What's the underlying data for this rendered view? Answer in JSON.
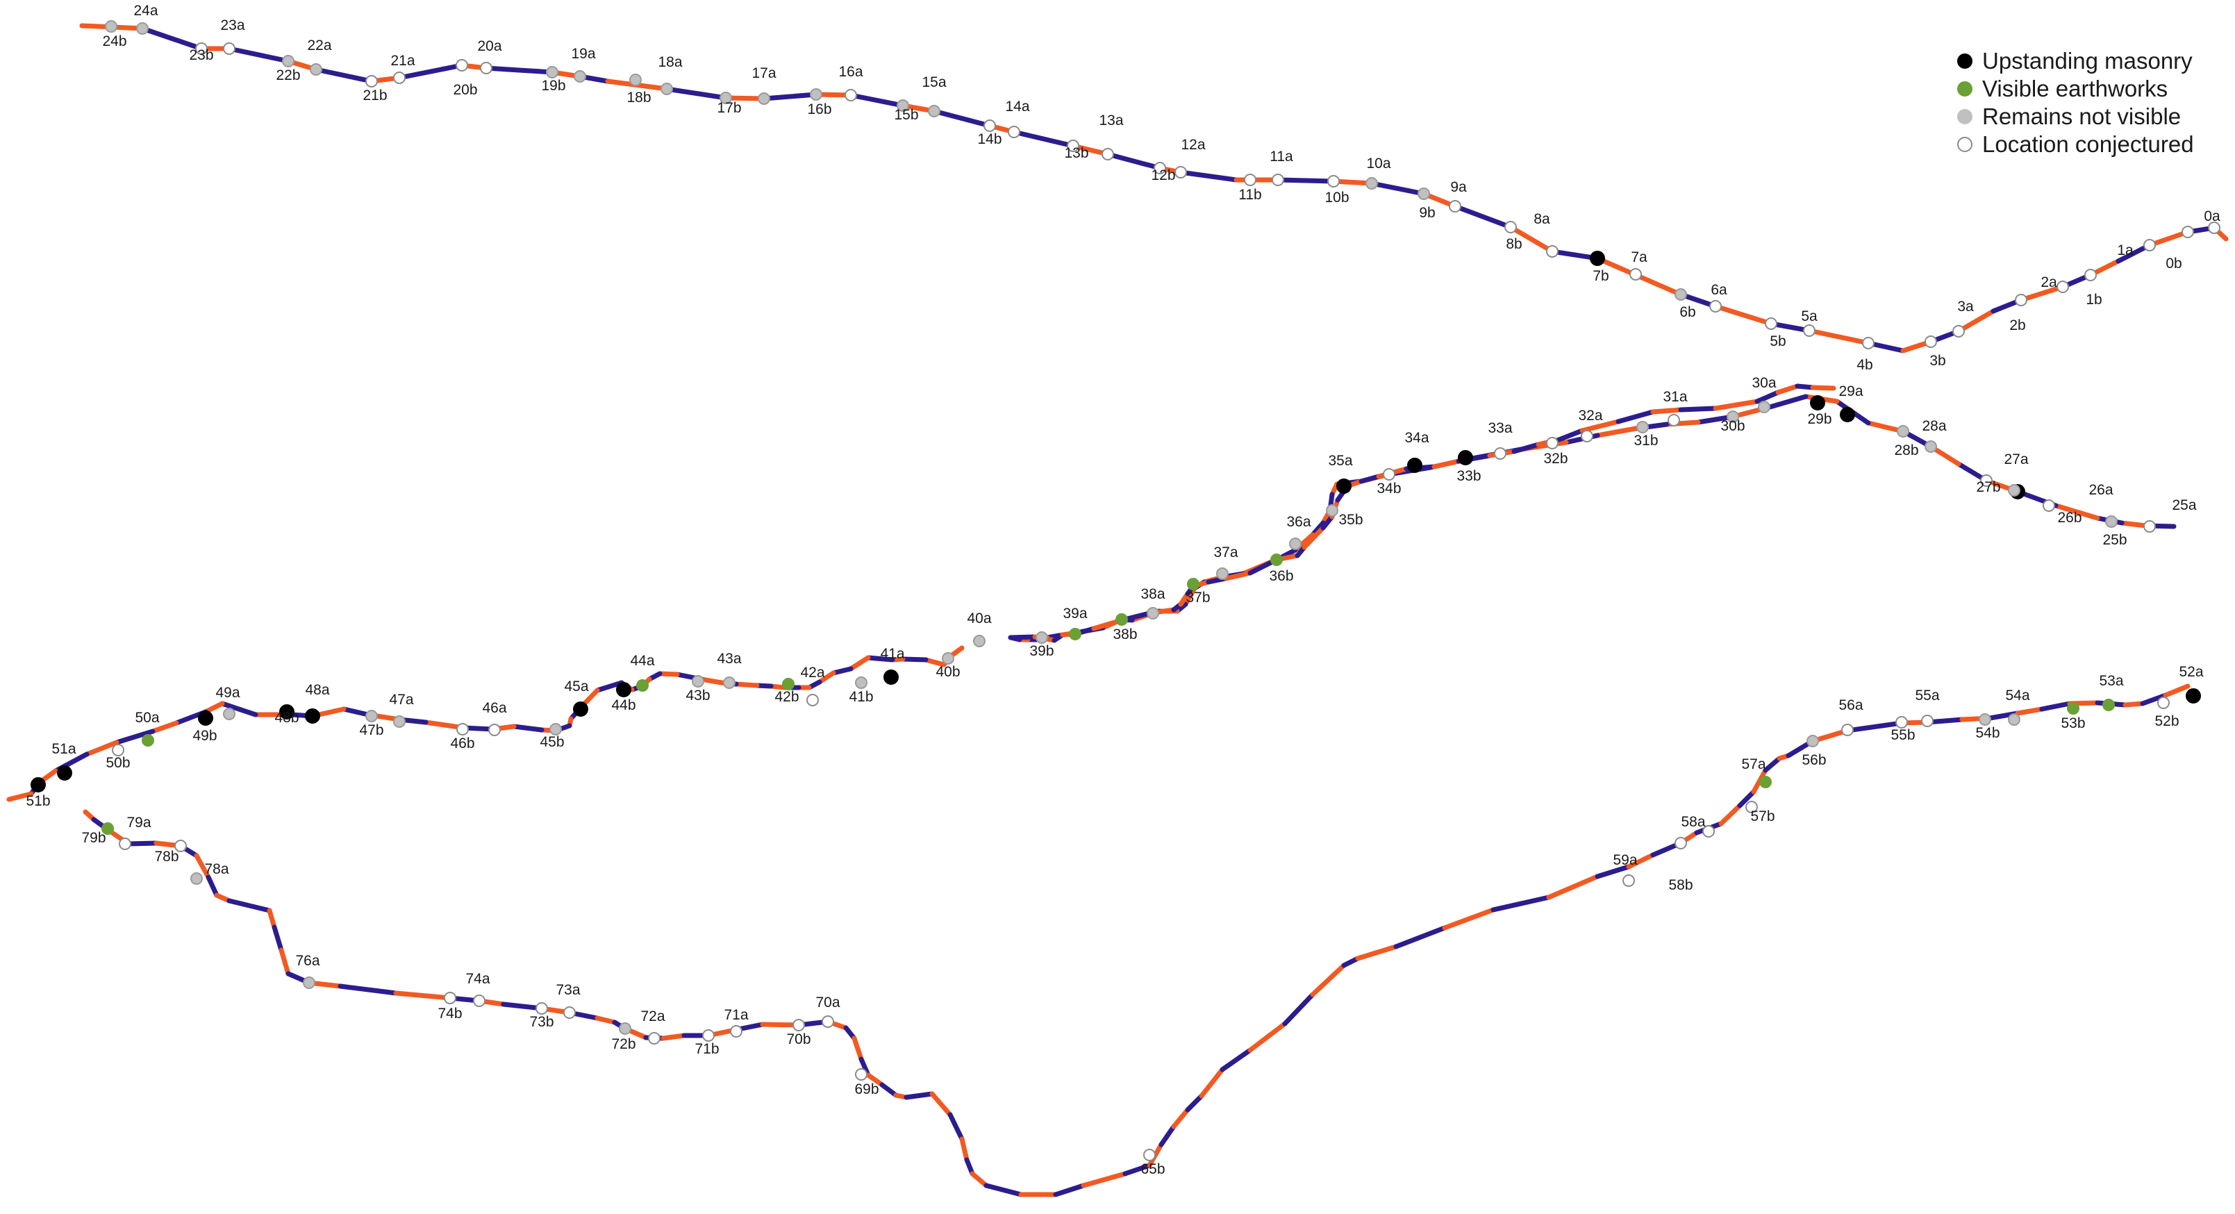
{
  "colors": {
    "segment_a": "#f15a22",
    "segment_b": "#2b1d8e",
    "upstanding_masonry": "#000000",
    "visible_earthworks": "#6ba034",
    "remains_not_visible": "#c0c0c0",
    "location_conjectured": "#ffffff"
  },
  "legend": [
    {
      "key": "upstanding_masonry",
      "label": "Upstanding masonry"
    },
    {
      "key": "visible_earthworks",
      "label": "Visible earthworks"
    },
    {
      "key": "remains_not_visible",
      "label": "Remains not visible"
    },
    {
      "key": "location_conjectured",
      "label": "Location conjectured"
    }
  ],
  "sites": [
    {
      "label": "0a",
      "status": "location_conjectured"
    },
    {
      "label": "0b",
      "status": "location_conjectured"
    },
    {
      "label": "1a",
      "status": "location_conjectured"
    },
    {
      "label": "1b",
      "status": "location_conjectured"
    },
    {
      "label": "2a",
      "status": "location_conjectured"
    },
    {
      "label": "2b",
      "status": "location_conjectured"
    },
    {
      "label": "3a",
      "status": "location_conjectured"
    },
    {
      "label": "3b",
      "status": "location_conjectured"
    },
    {
      "label": "4b",
      "status": "location_conjectured"
    },
    {
      "label": "5a",
      "status": "location_conjectured"
    },
    {
      "label": "5b",
      "status": "location_conjectured"
    },
    {
      "label": "6a",
      "status": "location_conjectured"
    },
    {
      "label": "6b",
      "status": "remains_not_visible"
    },
    {
      "label": "7a",
      "status": "location_conjectured"
    },
    {
      "label": "7b",
      "status": "upstanding_masonry"
    },
    {
      "label": "8a",
      "status": "location_conjectured"
    },
    {
      "label": "8b",
      "status": "location_conjectured"
    },
    {
      "label": "9a",
      "status": "location_conjectured"
    },
    {
      "label": "9b",
      "status": "remains_not_visible"
    },
    {
      "label": "10a",
      "status": "remains_not_visible"
    },
    {
      "label": "10b",
      "status": "location_conjectured"
    },
    {
      "label": "11a",
      "status": "location_conjectured"
    },
    {
      "label": "11b",
      "status": "location_conjectured"
    },
    {
      "label": "12a",
      "status": "location_conjectured"
    },
    {
      "label": "12b",
      "status": "location_conjectured"
    },
    {
      "label": "13a",
      "status": "location_conjectured"
    },
    {
      "label": "13b",
      "status": "location_conjectured"
    },
    {
      "label": "14a",
      "status": "location_conjectured"
    },
    {
      "label": "14b",
      "status": "location_conjectured"
    },
    {
      "label": "15a",
      "status": "remains_not_visible"
    },
    {
      "label": "15b",
      "status": "remains_not_visible"
    },
    {
      "label": "16a",
      "status": "location_conjectured"
    },
    {
      "label": "16b",
      "status": "remains_not_visible"
    },
    {
      "label": "17a",
      "status": "remains_not_visible"
    },
    {
      "label": "17b",
      "status": "remains_not_visible"
    },
    {
      "label": "18a",
      "status": "remains_not_visible"
    },
    {
      "label": "18b",
      "status": "remains_not_visible"
    },
    {
      "label": "19a",
      "status": "remains_not_visible"
    },
    {
      "label": "19b",
      "status": "remains_not_visible"
    },
    {
      "label": "20a",
      "status": "location_conjectured"
    },
    {
      "label": "20b",
      "status": "location_conjectured"
    },
    {
      "label": "21a",
      "status": "location_conjectured"
    },
    {
      "label": "21b",
      "status": "location_conjectured"
    },
    {
      "label": "22a",
      "status": "remains_not_visible"
    },
    {
      "label": "22b",
      "status": "remains_not_visible"
    },
    {
      "label": "23a",
      "status": "location_conjectured"
    },
    {
      "label": "23b",
      "status": "location_conjectured"
    },
    {
      "label": "24a",
      "status": "remains_not_visible"
    },
    {
      "label": "24b",
      "status": "remains_not_visible"
    },
    {
      "label": "25a",
      "status": "location_conjectured"
    },
    {
      "label": "25b",
      "status": "remains_not_visible"
    },
    {
      "label": "26a",
      "status": "location_conjectured"
    },
    {
      "label": "26b",
      "status": "upstanding_masonry"
    },
    {
      "label": "27a",
      "status": "remains_not_visible"
    },
    {
      "label": "27b",
      "status": "location_conjectured"
    },
    {
      "label": "28a",
      "status": "remains_not_visible"
    },
    {
      "label": "28b",
      "status": "remains_not_visible"
    },
    {
      "label": "29a",
      "status": "upstanding_masonry"
    },
    {
      "label": "29b",
      "status": "upstanding_masonry"
    },
    {
      "label": "30a",
      "status": "remains_not_visible"
    },
    {
      "label": "30b",
      "status": "remains_not_visible"
    },
    {
      "label": "31a",
      "status": "location_conjectured"
    },
    {
      "label": "31b",
      "status": "remains_not_visible"
    },
    {
      "label": "32a",
      "status": "location_conjectured"
    },
    {
      "label": "32b",
      "status": "location_conjectured"
    },
    {
      "label": "33a",
      "status": "location_conjectured"
    },
    {
      "label": "33b",
      "status": "upstanding_masonry"
    },
    {
      "label": "34a",
      "status": "upstanding_masonry"
    },
    {
      "label": "34b",
      "status": "location_conjectured"
    },
    {
      "label": "35a",
      "status": "upstanding_masonry"
    },
    {
      "label": "35b",
      "status": "remains_not_visible"
    },
    {
      "label": "36a",
      "status": "remains_not_visible"
    },
    {
      "label": "36b",
      "status": "visible_earthworks"
    },
    {
      "label": "37a",
      "status": "remains_not_visible"
    },
    {
      "label": "37b",
      "status": "visible_earthworks"
    },
    {
      "label": "38a",
      "status": "remains_not_visible"
    },
    {
      "label": "38b",
      "status": "visible_earthworks"
    },
    {
      "label": "39a",
      "status": "visible_earthworks"
    },
    {
      "label": "39b",
      "status": "remains_not_visible"
    },
    {
      "label": "40a",
      "status": "remains_not_visible"
    },
    {
      "label": "40b",
      "status": "remains_not_visible"
    },
    {
      "label": "41a",
      "status": "upstanding_masonry"
    },
    {
      "label": "41b",
      "status": "remains_not_visible"
    },
    {
      "label": "42a",
      "status": "visible_earthworks"
    },
    {
      "label": "42b",
      "status": "location_conjectured"
    },
    {
      "label": "43a",
      "status": "remains_not_visible"
    },
    {
      "label": "43b",
      "status": "remains_not_visible"
    },
    {
      "label": "44a",
      "status": "visible_earthworks"
    },
    {
      "label": "44b",
      "status": "upstanding_masonry"
    },
    {
      "label": "45a",
      "status": "upstanding_masonry"
    },
    {
      "label": "45b",
      "status": "remains_not_visible"
    },
    {
      "label": "46a",
      "status": "location_conjectured"
    },
    {
      "label": "46b",
      "status": "location_conjectured"
    },
    {
      "label": "47a",
      "status": "remains_not_visible"
    },
    {
      "label": "47b",
      "status": "remains_not_visible"
    },
    {
      "label": "48a",
      "status": "upstanding_masonry"
    },
    {
      "label": "48b",
      "status": "upstanding_masonry"
    },
    {
      "label": "49a",
      "status": "remains_not_visible"
    },
    {
      "label": "49b",
      "status": "upstanding_masonry"
    },
    {
      "label": "50a",
      "status": "visible_earthworks"
    },
    {
      "label": "50b",
      "status": "location_conjectured"
    },
    {
      "label": "51a",
      "status": "upstanding_masonry"
    },
    {
      "label": "51b",
      "status": "upstanding_masonry"
    },
    {
      "label": "52a",
      "status": "upstanding_masonry"
    },
    {
      "label": "52b",
      "status": "location_conjectured"
    },
    {
      "label": "53a",
      "status": "visible_earthworks"
    },
    {
      "label": "53b",
      "status": "visible_earthworks"
    },
    {
      "label": "54a",
      "status": "remains_not_visible"
    },
    {
      "label": "54b",
      "status": "remains_not_visible"
    },
    {
      "label": "55a",
      "status": "location_conjectured"
    },
    {
      "label": "55b",
      "status": "location_conjectured"
    },
    {
      "label": "56a",
      "status": "location_conjectured"
    },
    {
      "label": "56b",
      "status": "remains_not_visible"
    },
    {
      "label": "57a",
      "status": "visible_earthworks"
    },
    {
      "label": "57b",
      "status": "location_conjectured"
    },
    {
      "label": "58a",
      "status": "location_conjectured"
    },
    {
      "label": "58b",
      "status": "location_conjectured"
    },
    {
      "label": "59a",
      "status": "location_conjectured"
    },
    {
      "label": "65b",
      "status": "location_conjectured"
    },
    {
      "label": "69b",
      "status": "location_conjectured"
    },
    {
      "label": "70a",
      "status": "location_conjectured"
    },
    {
      "label": "70b",
      "status": "location_conjectured"
    },
    {
      "label": "71a",
      "status": "location_conjectured"
    },
    {
      "label": "71b",
      "status": "location_conjectured"
    },
    {
      "label": "72a",
      "status": "location_conjectured"
    },
    {
      "label": "72b",
      "status": "remains_not_visible"
    },
    {
      "label": "73a",
      "status": "location_conjectured"
    },
    {
      "label": "73b",
      "status": "location_conjectured"
    },
    {
      "label": "74a",
      "status": "location_conjectured"
    },
    {
      "label": "74b",
      "status": "location_conjectured"
    },
    {
      "label": "76a",
      "status": "remains_not_visible"
    },
    {
      "label": "78a",
      "status": "remains_not_visible"
    },
    {
      "label": "78b",
      "status": "location_conjectured"
    },
    {
      "label": "79a",
      "status": "visible_earthworks"
    },
    {
      "label": "79b",
      "status": "location_conjectured"
    }
  ]
}
